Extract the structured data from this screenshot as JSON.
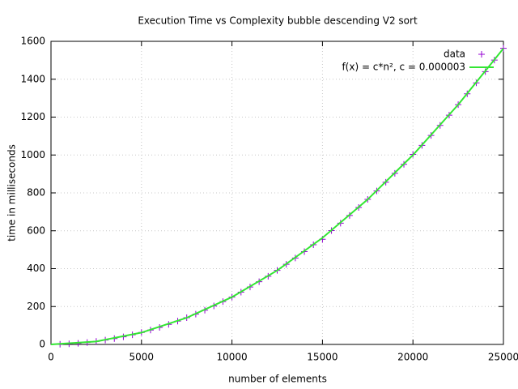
{
  "chart_data": {
    "type": "scatter",
    "title": "Execution Time vs Complexity bubble descending V2 sort",
    "xlabel": "number of elements",
    "ylabel": "time in milliseconds",
    "xlim": [
      0,
      25000
    ],
    "xticks": [
      0,
      5000,
      10000,
      15000,
      20000,
      25000
    ],
    "ylim": [
      0,
      1600
    ],
    "yticks": [
      0,
      200,
      400,
      600,
      800,
      1000,
      1200,
      1400,
      1600
    ],
    "grid": true,
    "legend": "top-right",
    "series": [
      {
        "name": "data",
        "color": "#9400d3",
        "mode": "points",
        "x": [
          500,
          1000,
          1500,
          2000,
          2500,
          3000,
          3500,
          4000,
          4500,
          5000,
          5500,
          6000,
          6500,
          7000,
          7500,
          8000,
          8500,
          9000,
          9500,
          10000,
          10500,
          11000,
          11500,
          12000,
          12500,
          13000,
          13500,
          14000,
          14500,
          15000,
          15500,
          16000,
          16500,
          17000,
          17500,
          18000,
          18500,
          19000,
          19500,
          20000,
          20500,
          21000,
          21500,
          22000,
          22500,
          23000,
          23500,
          24000,
          24500,
          25000
        ],
        "values": [
          1,
          3,
          6,
          10,
          16,
          23,
          31,
          40,
          51,
          63,
          76,
          90,
          106,
          123,
          141,
          160,
          181,
          203,
          226,
          250,
          276,
          303,
          331,
          360,
          391,
          423,
          456,
          490,
          526,
          555,
          601,
          640,
          681,
          723,
          766,
          810,
          856,
          903,
          951,
          1003,
          1051,
          1103,
          1156,
          1210,
          1266,
          1323,
          1381,
          1440,
          1501,
          1563
        ]
      },
      {
        "name": "f(x) = c*n², c = 0.000003",
        "color": "#33e633",
        "mode": "line",
        "x": [
          0,
          2500,
          5000,
          7500,
          10000,
          12500,
          15000,
          17500,
          20000,
          22500,
          25000
        ],
        "values": [
          0,
          15.625,
          62.5,
          140.625,
          250,
          390.625,
          562.5,
          765.625,
          1000,
          1265.625,
          1562.5
        ]
      }
    ]
  }
}
